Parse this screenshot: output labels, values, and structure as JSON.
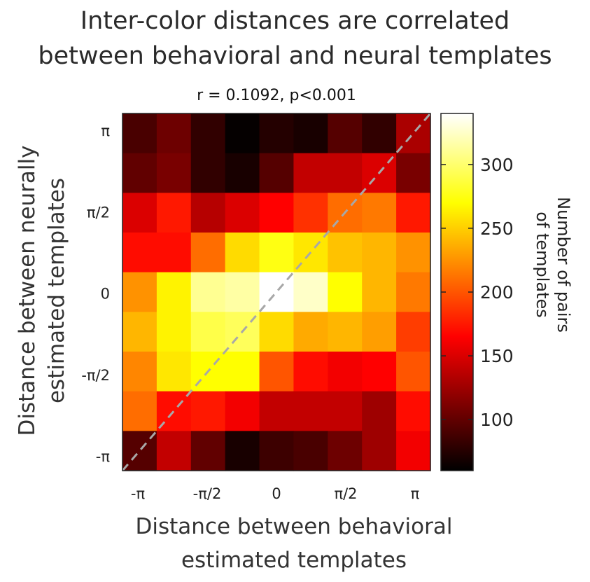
{
  "chart_data": {
    "type": "heatmap",
    "title": [
      "Inter-color distances are correlated",
      "between behavioral and neural templates"
    ],
    "subtitle": "r = 0.1092, p<0.001",
    "xlabel": [
      "Distance between behavioral",
      "estimated templates"
    ],
    "ylabel": [
      "Distance between neurally",
      "estimated templates"
    ],
    "x_tick_labels": [
      "-π",
      "-π/2",
      "0",
      "π/2",
      "π"
    ],
    "y_tick_labels": [
      "π",
      "π/2",
      "0",
      "-π/2",
      "-π"
    ],
    "x_range": [
      "-π",
      "π"
    ],
    "y_range": [
      "-π",
      "π"
    ],
    "colormap": "hot",
    "colorbar": {
      "label": [
        "Number of pairs",
        "of templates"
      ],
      "ticks": [
        100,
        150,
        200,
        250,
        300
      ],
      "range": [
        60,
        340
      ]
    },
    "diagonal_line": {
      "style": "dashed",
      "color": "#a0a0a0"
    },
    "grid_size": [
      9,
      9
    ],
    "values_top_to_bottom": [
      [
        90,
        105,
        80,
        62,
        75,
        70,
        95,
        80,
        130
      ],
      [
        100,
        110,
        80,
        70,
        95,
        140,
        140,
        150,
        110
      ],
      [
        150,
        175,
        135,
        150,
        165,
        185,
        210,
        215,
        175
      ],
      [
        170,
        170,
        210,
        255,
        275,
        260,
        245,
        240,
        225
      ],
      [
        225,
        265,
        310,
        315,
        340,
        325,
        270,
        240,
        215
      ],
      [
        240,
        265,
        290,
        295,
        255,
        235,
        240,
        230,
        190
      ],
      [
        220,
        260,
        270,
        270,
        200,
        170,
        160,
        165,
        200
      ],
      [
        210,
        170,
        175,
        160,
        140,
        140,
        140,
        125,
        170
      ],
      [
        95,
        140,
        100,
        70,
        85,
        90,
        105,
        125,
        160
      ]
    ]
  }
}
